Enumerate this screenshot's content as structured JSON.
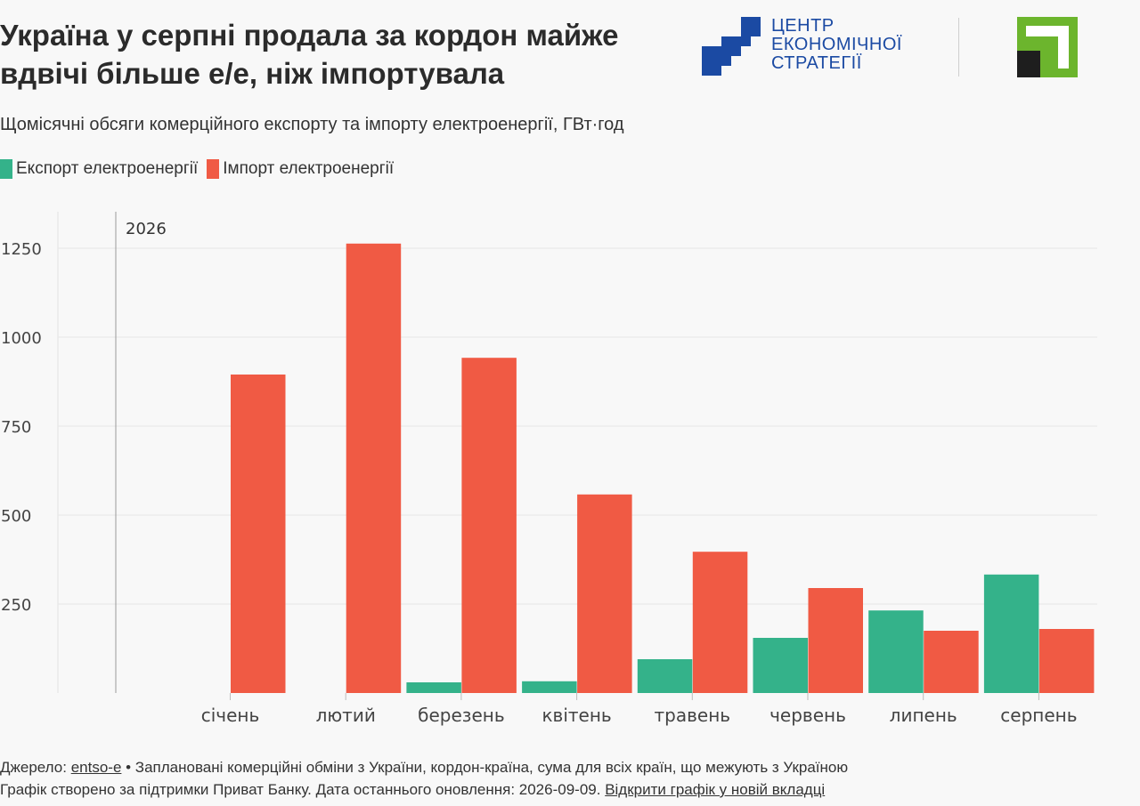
{
  "header": {
    "title": "Україна у серпні продала за кордон майже вдвічі більше е/е, ніж імпортувала",
    "subtitle": "Щомісячні обсяги комерційного експорту та імпорту електроенергії, ГВт·год"
  },
  "logos": {
    "ces": {
      "line1": "ЦЕНТР",
      "line2": "ЕКОНОМІЧНОЇ",
      "line3": "СТРАТЕГІЇ",
      "color": "#1b4aa3"
    },
    "privat": {
      "icon": "privatbank-logo",
      "color": "#6cb52d"
    }
  },
  "chart_data": {
    "type": "bar",
    "categories": [
      "січень",
      "лютий",
      "березень",
      "квітень",
      "травень",
      "червень",
      "липень",
      "серпень"
    ],
    "series": [
      {
        "name": "Експорт електроенергії",
        "color": "#34b28a",
        "values": [
          0,
          0,
          30,
          33,
          95,
          155,
          232,
          333
        ]
      },
      {
        "name": "Імпорт електроенергії",
        "color": "#f05a44",
        "values": [
          895,
          1263,
          942,
          558,
          397,
          295,
          175,
          180
        ]
      }
    ],
    "ylim": [
      0,
      1350
    ],
    "yticks": [
      "250",
      "500",
      "750",
      "1000",
      "1250"
    ],
    "ytick_values": [
      250,
      500,
      750,
      1000,
      1250
    ],
    "annotation": "2026",
    "grid": true,
    "legend": "top-left"
  },
  "footer": {
    "source_prefix": "Джерело: ",
    "source_link": "entso-e",
    "source_rest": " • Заплановані комерційні обміни з України, кордон-країна, сума для всіх країн, що межують з Україною",
    "line2": "Графік створено за підтримки Приват Банку. Дата останнього оновлення: 2026-09-09. ",
    "open_link": "Відкрити графік у новій вкладці"
  }
}
